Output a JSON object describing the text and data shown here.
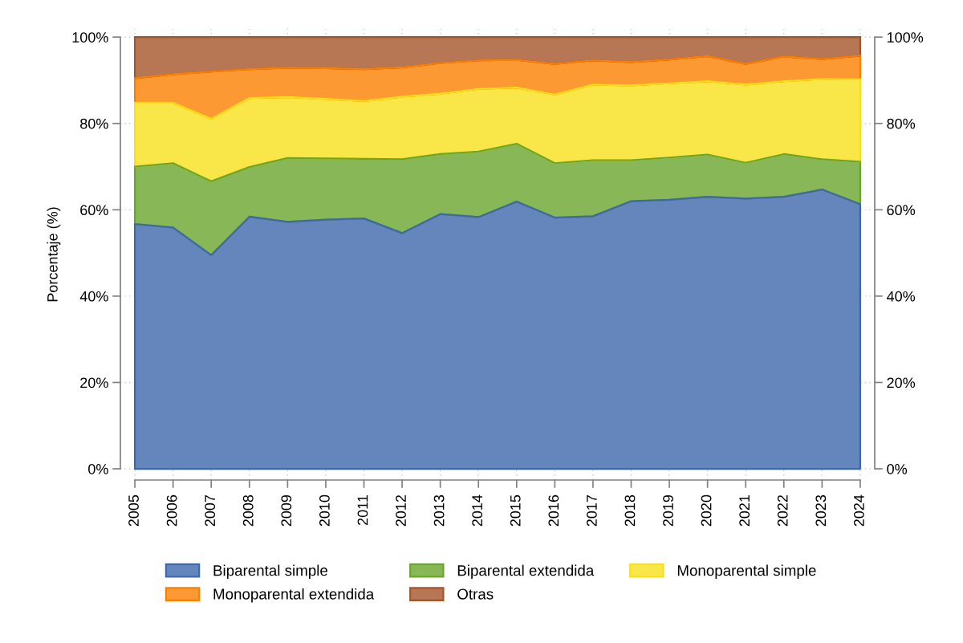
{
  "chart_data": {
    "type": "area",
    "stacked": true,
    "ylabel": "Porcentaje (%)",
    "x": [
      2005,
      2006,
      2007,
      2008,
      2009,
      2010,
      2011,
      2012,
      2013,
      2014,
      2015,
      2016,
      2017,
      2018,
      2019,
      2020,
      2021,
      2022,
      2023,
      2024
    ],
    "xlim": [
      2005,
      2024
    ],
    "xticks": [
      2005,
      2006,
      2007,
      2008,
      2009,
      2010,
      2011,
      2012,
      2013,
      2014,
      2015,
      2016,
      2017,
      2018,
      2019,
      2020,
      2021,
      2022,
      2023,
      2024
    ],
    "ylim": [
      0,
      100
    ],
    "yticks": [
      {
        "value": 0,
        "label": "0%"
      },
      {
        "value": 20,
        "label": "20%"
      },
      {
        "value": 40,
        "label": "40%"
      },
      {
        "value": 60,
        "label": "60%"
      },
      {
        "value": 80,
        "label": "80%"
      },
      {
        "value": 100,
        "label": "100%"
      }
    ],
    "y2lim": [
      0,
      100
    ],
    "y2ticks": [
      {
        "value": 0,
        "label": "0%"
      },
      {
        "value": 20,
        "label": "20%"
      },
      {
        "value": 40,
        "label": "40%"
      },
      {
        "value": 60,
        "label": "60%"
      },
      {
        "value": 80,
        "label": "80%"
      },
      {
        "value": 100,
        "label": "100%"
      }
    ],
    "grid": true,
    "legend": "bottom",
    "series": [
      {
        "name": "Biparental simple",
        "color": "#3e68ad",
        "values": [
          56.7,
          55.9,
          49.5,
          58.4,
          57.2,
          57.7,
          58.0,
          54.6,
          59.0,
          58.3,
          61.9,
          58.2,
          58.5,
          62.0,
          62.3,
          63.0,
          62.6,
          63.0,
          64.7,
          61.3
        ]
      },
      {
        "name": "Biparental extendida",
        "color": "#6aa52e",
        "values": [
          13.3,
          14.9,
          17.1,
          11.5,
          14.8,
          14.2,
          13.8,
          17.1,
          13.9,
          15.2,
          13.4,
          12.6,
          13.0,
          9.5,
          9.8,
          9.8,
          8.3,
          9.9,
          7.0,
          9.8
        ]
      },
      {
        "name": "Monoparental simple",
        "color": "#f8e01a",
        "values": [
          14.8,
          14.0,
          14.5,
          16.0,
          14.1,
          13.8,
          13.4,
          14.5,
          14.0,
          14.5,
          13.0,
          15.9,
          17.5,
          17.3,
          17.2,
          17.0,
          18.1,
          16.9,
          18.6,
          19.1
        ]
      },
      {
        "name": "Monoparental extendida",
        "color": "#fc7f00",
        "values": [
          5.7,
          6.6,
          10.9,
          6.7,
          6.8,
          7.1,
          7.4,
          6.8,
          7.1,
          6.6,
          6.4,
          7.1,
          5.6,
          5.4,
          5.5,
          5.8,
          4.8,
          5.7,
          4.6,
          5.5
        ]
      },
      {
        "name": "Otras",
        "color": "#a5552a",
        "values": [
          9.5,
          8.6,
          8.0,
          7.4,
          7.1,
          7.2,
          7.4,
          7.0,
          6.0,
          5.4,
          5.3,
          6.2,
          5.4,
          5.8,
          5.2,
          4.4,
          6.2,
          4.5,
          5.1,
          4.3
        ]
      }
    ]
  }
}
